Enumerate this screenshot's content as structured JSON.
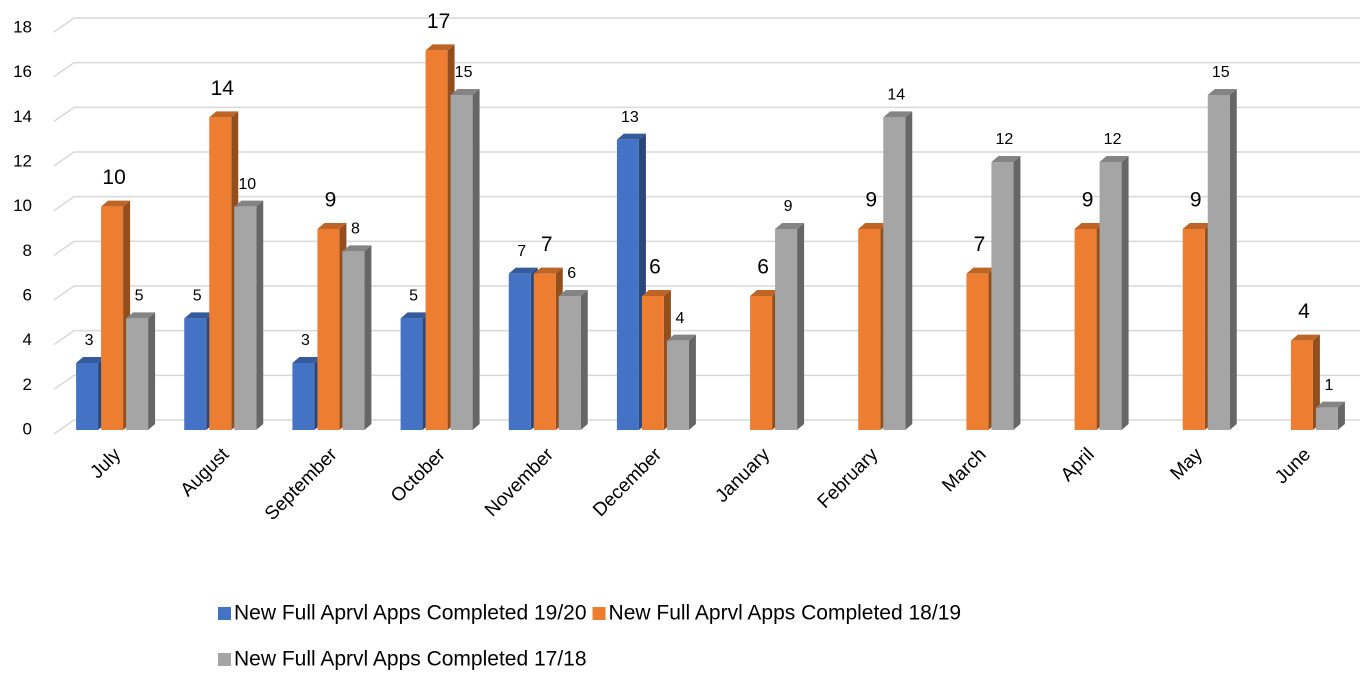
{
  "chart_data": {
    "type": "bar3d",
    "categories": [
      "July",
      "August",
      "September",
      "October",
      "November",
      "December",
      "January",
      "February",
      "March",
      "April",
      "May",
      "June"
    ],
    "series": [
      {
        "name": "New Full Aprvl Apps Completed 19/20",
        "color": "#4472c4",
        "values": [
          3,
          5,
          3,
          5,
          7,
          13,
          null,
          null,
          null,
          null,
          null,
          null
        ]
      },
      {
        "name": "New Full Aprvl Apps Completed 18/19",
        "color": "#ed7d31",
        "values": [
          10,
          14,
          9,
          17,
          7,
          6,
          6,
          9,
          7,
          9,
          9,
          4
        ]
      },
      {
        "name": "New Full Aprvl Apps Completed 17/18",
        "color": "#a5a5a5",
        "values": [
          5,
          10,
          8,
          15,
          6,
          4,
          9,
          14,
          12,
          12,
          15,
          1
        ]
      }
    ],
    "ylim": [
      0,
      18
    ],
    "yticks": [
      0,
      2,
      4,
      6,
      8,
      10,
      12,
      14,
      16,
      18
    ],
    "grid": true,
    "legend": "bottom"
  }
}
